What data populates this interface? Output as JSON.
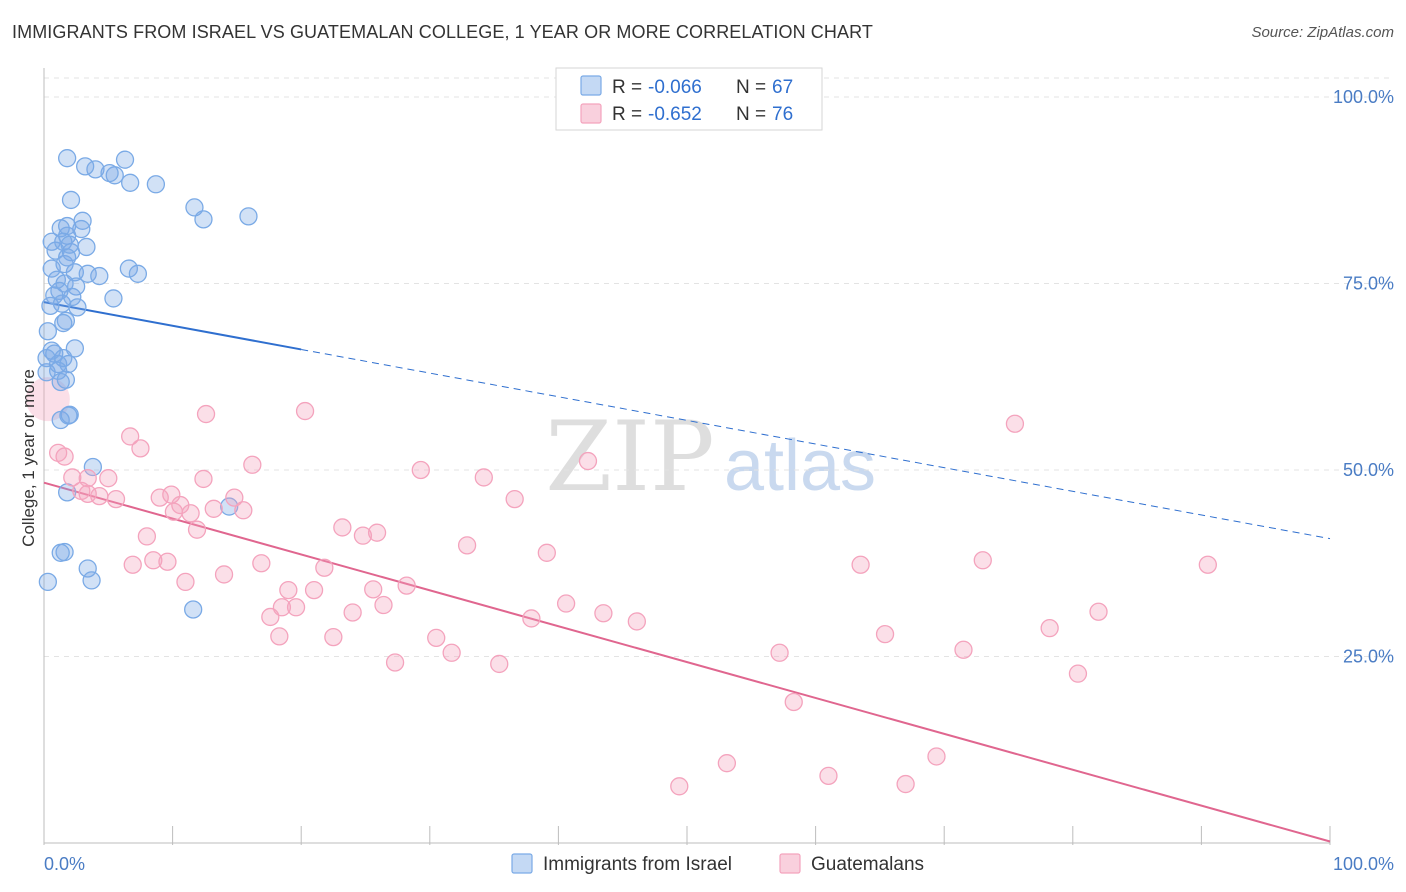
{
  "title": "IMMIGRANTS FROM ISRAEL VS GUATEMALAN COLLEGE, 1 YEAR OR MORE CORRELATION CHART",
  "source": "Source: ZipAtlas.com",
  "watermark": {
    "zip": "ZIP",
    "atlas": "atlas"
  },
  "chart_data": {
    "type": "scatter",
    "title": "IMMIGRANTS FROM ISRAEL VS GUATEMALAN COLLEGE, 1 YEAR OR MORE CORRELATION CHART",
    "xlabel": "",
    "ylabel": "College, 1 year or more",
    "xlim": [
      0,
      100
    ],
    "ylim": [
      0,
      100
    ],
    "x_tick_labels": [
      "0.0%",
      "100.0%"
    ],
    "y_ticks": [
      25,
      50,
      75,
      100
    ],
    "y_tick_labels": [
      "25.0%",
      "50.0%",
      "75.0%",
      "100.0%"
    ],
    "grid": true,
    "legend": [
      {
        "r_label": "R =",
        "r_value": "-0.066",
        "n_label": "N =",
        "n_value": "67"
      },
      {
        "r_label": "R =",
        "r_value": "-0.652",
        "n_label": "N =",
        "n_value": "76"
      }
    ],
    "series": [
      {
        "name": "Immigrants from Israel",
        "color": "#7aaae6",
        "line_color": "#2f6fcf",
        "trend": {
          "x0": 0,
          "y0": 72.5,
          "x_solid_end": 20,
          "x1": 100,
          "y1": 40.8
        },
        "x": [
          1.8,
          4.0,
          5.5,
          2.1,
          3.0,
          1.3,
          0.6,
          0.9,
          1.5,
          2.9,
          1.8,
          0.6,
          1.6,
          2.4,
          3.4,
          4.3,
          1.0,
          1.6,
          2.5,
          1.2,
          2.2,
          6.6,
          1.8,
          3.3,
          2.1,
          5.1,
          6.7,
          0.8,
          1.4,
          2.6,
          1.7,
          2.4,
          0.5,
          0.8,
          1.1,
          1.5,
          1.9,
          0.2,
          1.1,
          1.7,
          0.6,
          0.3,
          1.3,
          2.0,
          1.3,
          3.8,
          1.8,
          1.6,
          1.3,
          0.3,
          3.4,
          3.7,
          1.9,
          11.7,
          12.4,
          15.9,
          8.7,
          14.4,
          11.6,
          1.8,
          3.2,
          6.3,
          5.4,
          7.3,
          1.5,
          0.2,
          2.0
        ],
        "y": [
          91.8,
          90.3,
          89.5,
          86.2,
          83.4,
          82.4,
          80.6,
          79.4,
          80.6,
          82.3,
          81.4,
          77.0,
          77.6,
          76.5,
          76.3,
          76.0,
          75.5,
          75.0,
          74.6,
          74.0,
          73.2,
          77.0,
          82.7,
          79.9,
          79.2,
          89.8,
          88.5,
          73.4,
          72.3,
          71.8,
          70.0,
          66.3,
          72.0,
          65.6,
          64.2,
          65.0,
          64.2,
          63.1,
          63.3,
          62.1,
          66.0,
          68.6,
          61.8,
          57.4,
          56.7,
          50.4,
          47.0,
          39.0,
          38.9,
          35.0,
          36.8,
          35.2,
          57.3,
          85.2,
          83.6,
          84.0,
          88.3,
          45.1,
          31.3,
          78.5,
          90.7,
          91.6,
          73.0,
          76.3,
          69.7,
          65.0,
          80.2
        ]
      },
      {
        "name": "Guatemalans",
        "color": "#f4a3bd",
        "line_color": "#e0668f",
        "trend": {
          "x0": 0,
          "y0": 48.3,
          "x1": 100,
          "y1": 0.2
        },
        "x": [
          1.1,
          1.6,
          2.2,
          2.9,
          3.4,
          4.3,
          5.0,
          5.6,
          6.7,
          7.5,
          8.0,
          8.5,
          9.0,
          9.6,
          10.1,
          10.6,
          11.0,
          11.4,
          11.9,
          12.4,
          13.2,
          14.0,
          14.8,
          15.5,
          16.2,
          16.9,
          17.6,
          18.3,
          19.0,
          19.6,
          20.3,
          21.0,
          21.8,
          22.5,
          23.2,
          24.0,
          24.8,
          25.6,
          26.4,
          27.3,
          28.2,
          29.3,
          30.5,
          31.7,
          32.9,
          34.2,
          35.4,
          36.6,
          37.9,
          39.1,
          40.6,
          42.3,
          43.5,
          46.1,
          49.4,
          53.1,
          57.2,
          58.3,
          61.0,
          63.5,
          65.4,
          67.0,
          69.4,
          71.5,
          73.0,
          75.5,
          78.2,
          80.4,
          82.0,
          90.5,
          3.4,
          6.9,
          9.9,
          12.6,
          18.5,
          25.9
        ],
        "y": [
          52.3,
          51.8,
          49.0,
          47.2,
          46.8,
          46.5,
          48.9,
          46.1,
          54.5,
          52.9,
          41.1,
          37.9,
          46.3,
          37.7,
          44.4,
          45.3,
          35.0,
          44.2,
          42.0,
          48.8,
          44.8,
          36.0,
          46.3,
          44.6,
          50.7,
          37.5,
          30.3,
          27.7,
          33.9,
          31.6,
          57.9,
          33.9,
          36.9,
          27.6,
          42.3,
          30.9,
          41.2,
          34.0,
          31.9,
          24.2,
          34.5,
          50.0,
          27.5,
          25.5,
          39.9,
          49.0,
          24.0,
          46.1,
          30.1,
          38.9,
          32.1,
          51.2,
          30.8,
          29.7,
          7.6,
          10.7,
          25.5,
          18.9,
          9.0,
          37.3,
          28.0,
          7.9,
          11.6,
          25.9,
          37.9,
          56.2,
          28.8,
          22.7,
          31.0,
          37.3,
          48.9,
          37.3,
          46.7,
          57.5,
          31.6,
          41.6
        ]
      }
    ]
  },
  "bottom_legend": [
    "Immigrants from Israel",
    "Guatemalans"
  ]
}
